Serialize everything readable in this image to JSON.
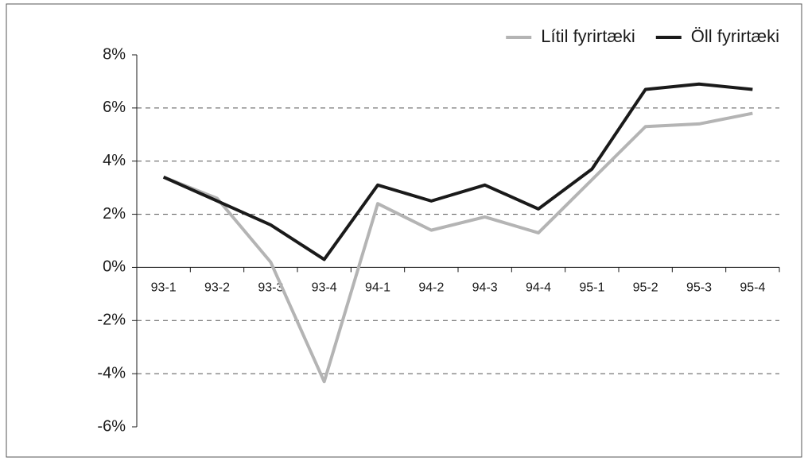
{
  "chart_data": {
    "type": "line",
    "categories": [
      "93-1",
      "93-2",
      "93-3",
      "93-4",
      "94-1",
      "94-2",
      "94-3",
      "94-4",
      "95-1",
      "95-2",
      "95-3",
      "95-4"
    ],
    "series": [
      {
        "name": "Lítil fyrirtæki",
        "color": "#b4b4b4",
        "values": [
          3.4,
          2.6,
          0.2,
          -4.3,
          2.4,
          1.4,
          1.9,
          1.3,
          3.3,
          5.3,
          5.4,
          5.8
        ]
      },
      {
        "name": "Öll fyrirtæki",
        "color": "#1a1a1a",
        "values": [
          3.4,
          2.5,
          1.6,
          0.3,
          3.1,
          2.5,
          3.1,
          2.2,
          3.7,
          6.7,
          6.9,
          6.7
        ]
      }
    ],
    "ylim": [
      -6,
      8
    ],
    "yticks": [
      {
        "value": -6,
        "label": "-6%"
      },
      {
        "value": -4,
        "label": "-4%"
      },
      {
        "value": -2,
        "label": "-2%"
      },
      {
        "value": 0,
        "label": "0%"
      },
      {
        "value": 2,
        "label": "2%"
      },
      {
        "value": 4,
        "label": "4%"
      },
      {
        "value": 6,
        "label": "6%"
      },
      {
        "value": 8,
        "label": "8%"
      }
    ],
    "grid": true,
    "legend": "top-right"
  }
}
